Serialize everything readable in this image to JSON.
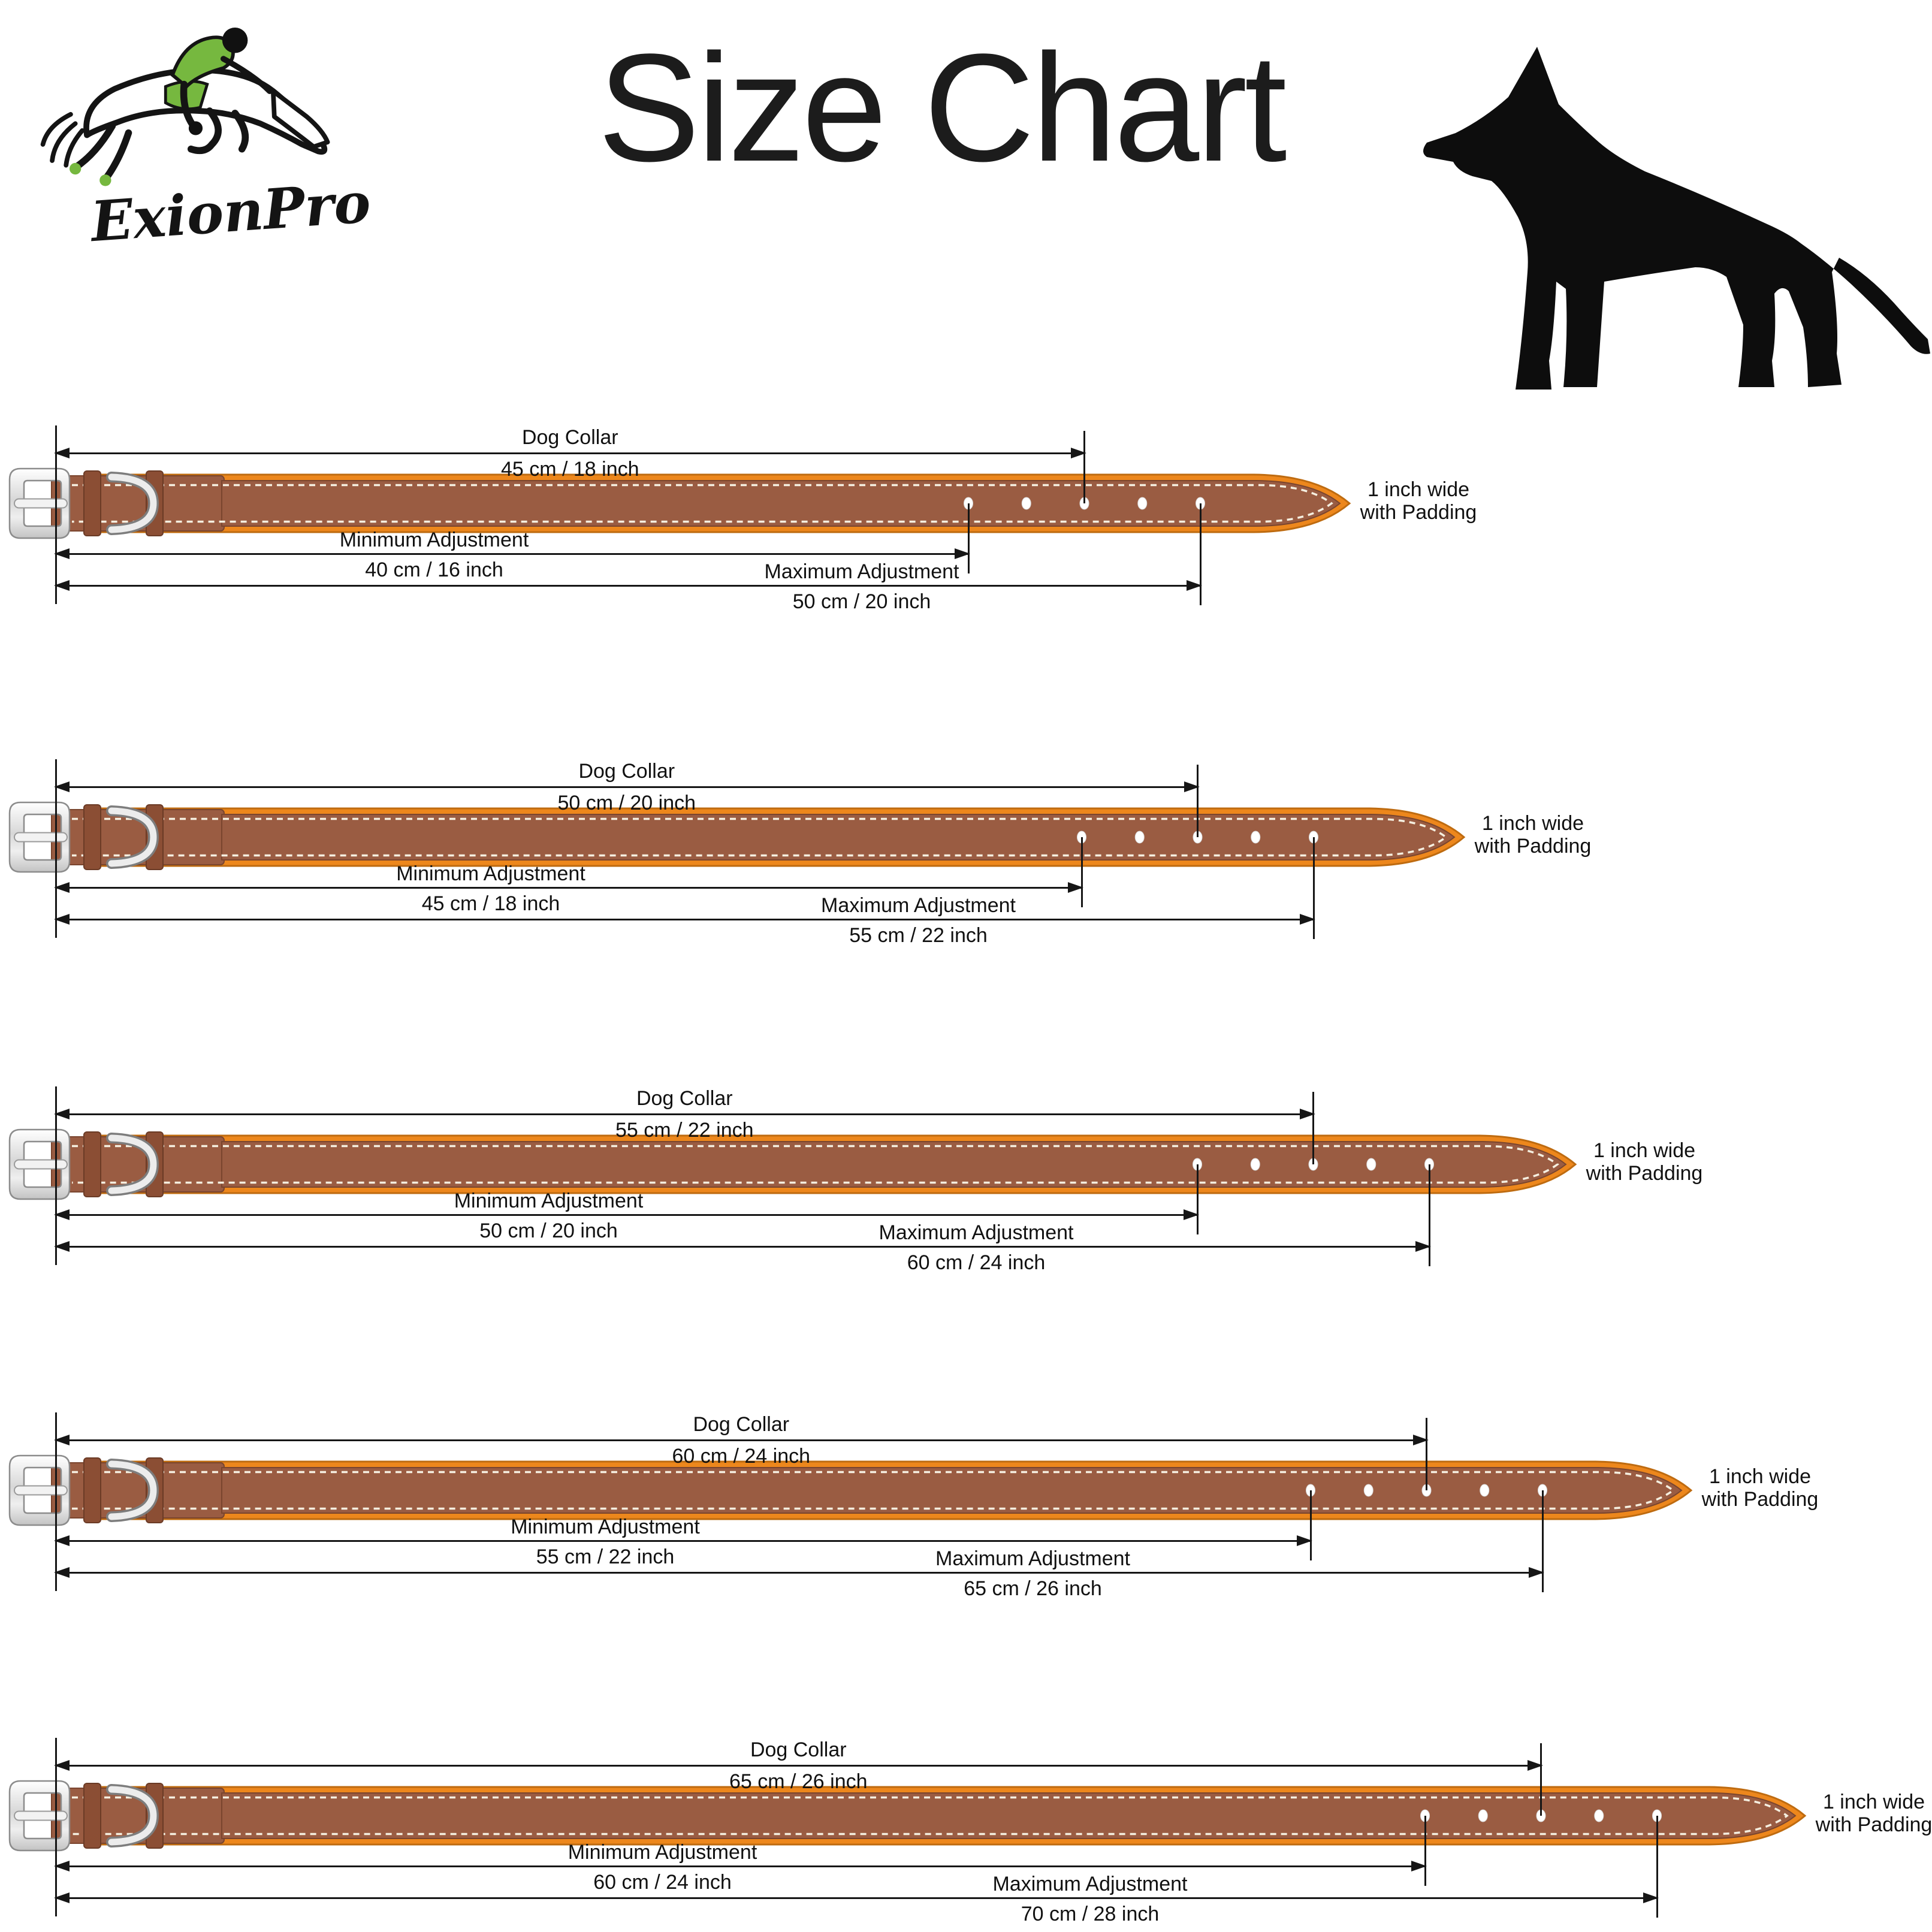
{
  "header": {
    "brand": "ExionPro",
    "title": "Size Chart"
  },
  "shared_labels": {
    "dog_collar": "Dog Collar",
    "minimum": "Minimum Adjustment",
    "maximum": "Maximum Adjustment",
    "width_line1": "1 inch wide",
    "width_line2": "with Padding"
  },
  "icons": {
    "dog_silhouette": "german-shepherd-dog-silhouette",
    "brand_logo": "jumping-horse-and-rider-logo"
  },
  "colors": {
    "leather_brown": "#9A5C42",
    "leather_edge": "#7A452E",
    "padding_orange": "#ED871C",
    "orange_edge": "#BE6B10",
    "stitch_white": "#F5EFE0",
    "keeper_brown": "#8B4E34",
    "buckle_silver": "#D9D9D9",
    "line_black": "#161616",
    "brand_green": "#76B83F",
    "silhouette_black": "#0d0d0d"
  },
  "rows": [
    {
      "collar_size": "45 cm / 18 inch",
      "min_size": "40 cm / 16 inch",
      "max_size": "50 cm / 20 inch"
    },
    {
      "collar_size": "50 cm / 20 inch",
      "min_size": "45 cm / 18 inch",
      "max_size": "55 cm / 22 inch"
    },
    {
      "collar_size": "55 cm / 22 inch",
      "min_size": "50 cm / 20 inch",
      "max_size": "60 cm / 24 inch"
    },
    {
      "collar_size": "60 cm / 24 inch",
      "min_size": "55 cm / 22 inch",
      "max_size": "65 cm / 26 inch"
    },
    {
      "collar_size": "65 cm / 26 inch",
      "min_size": "60 cm / 24 inch",
      "max_size": "70 cm / 28 inch"
    }
  ]
}
